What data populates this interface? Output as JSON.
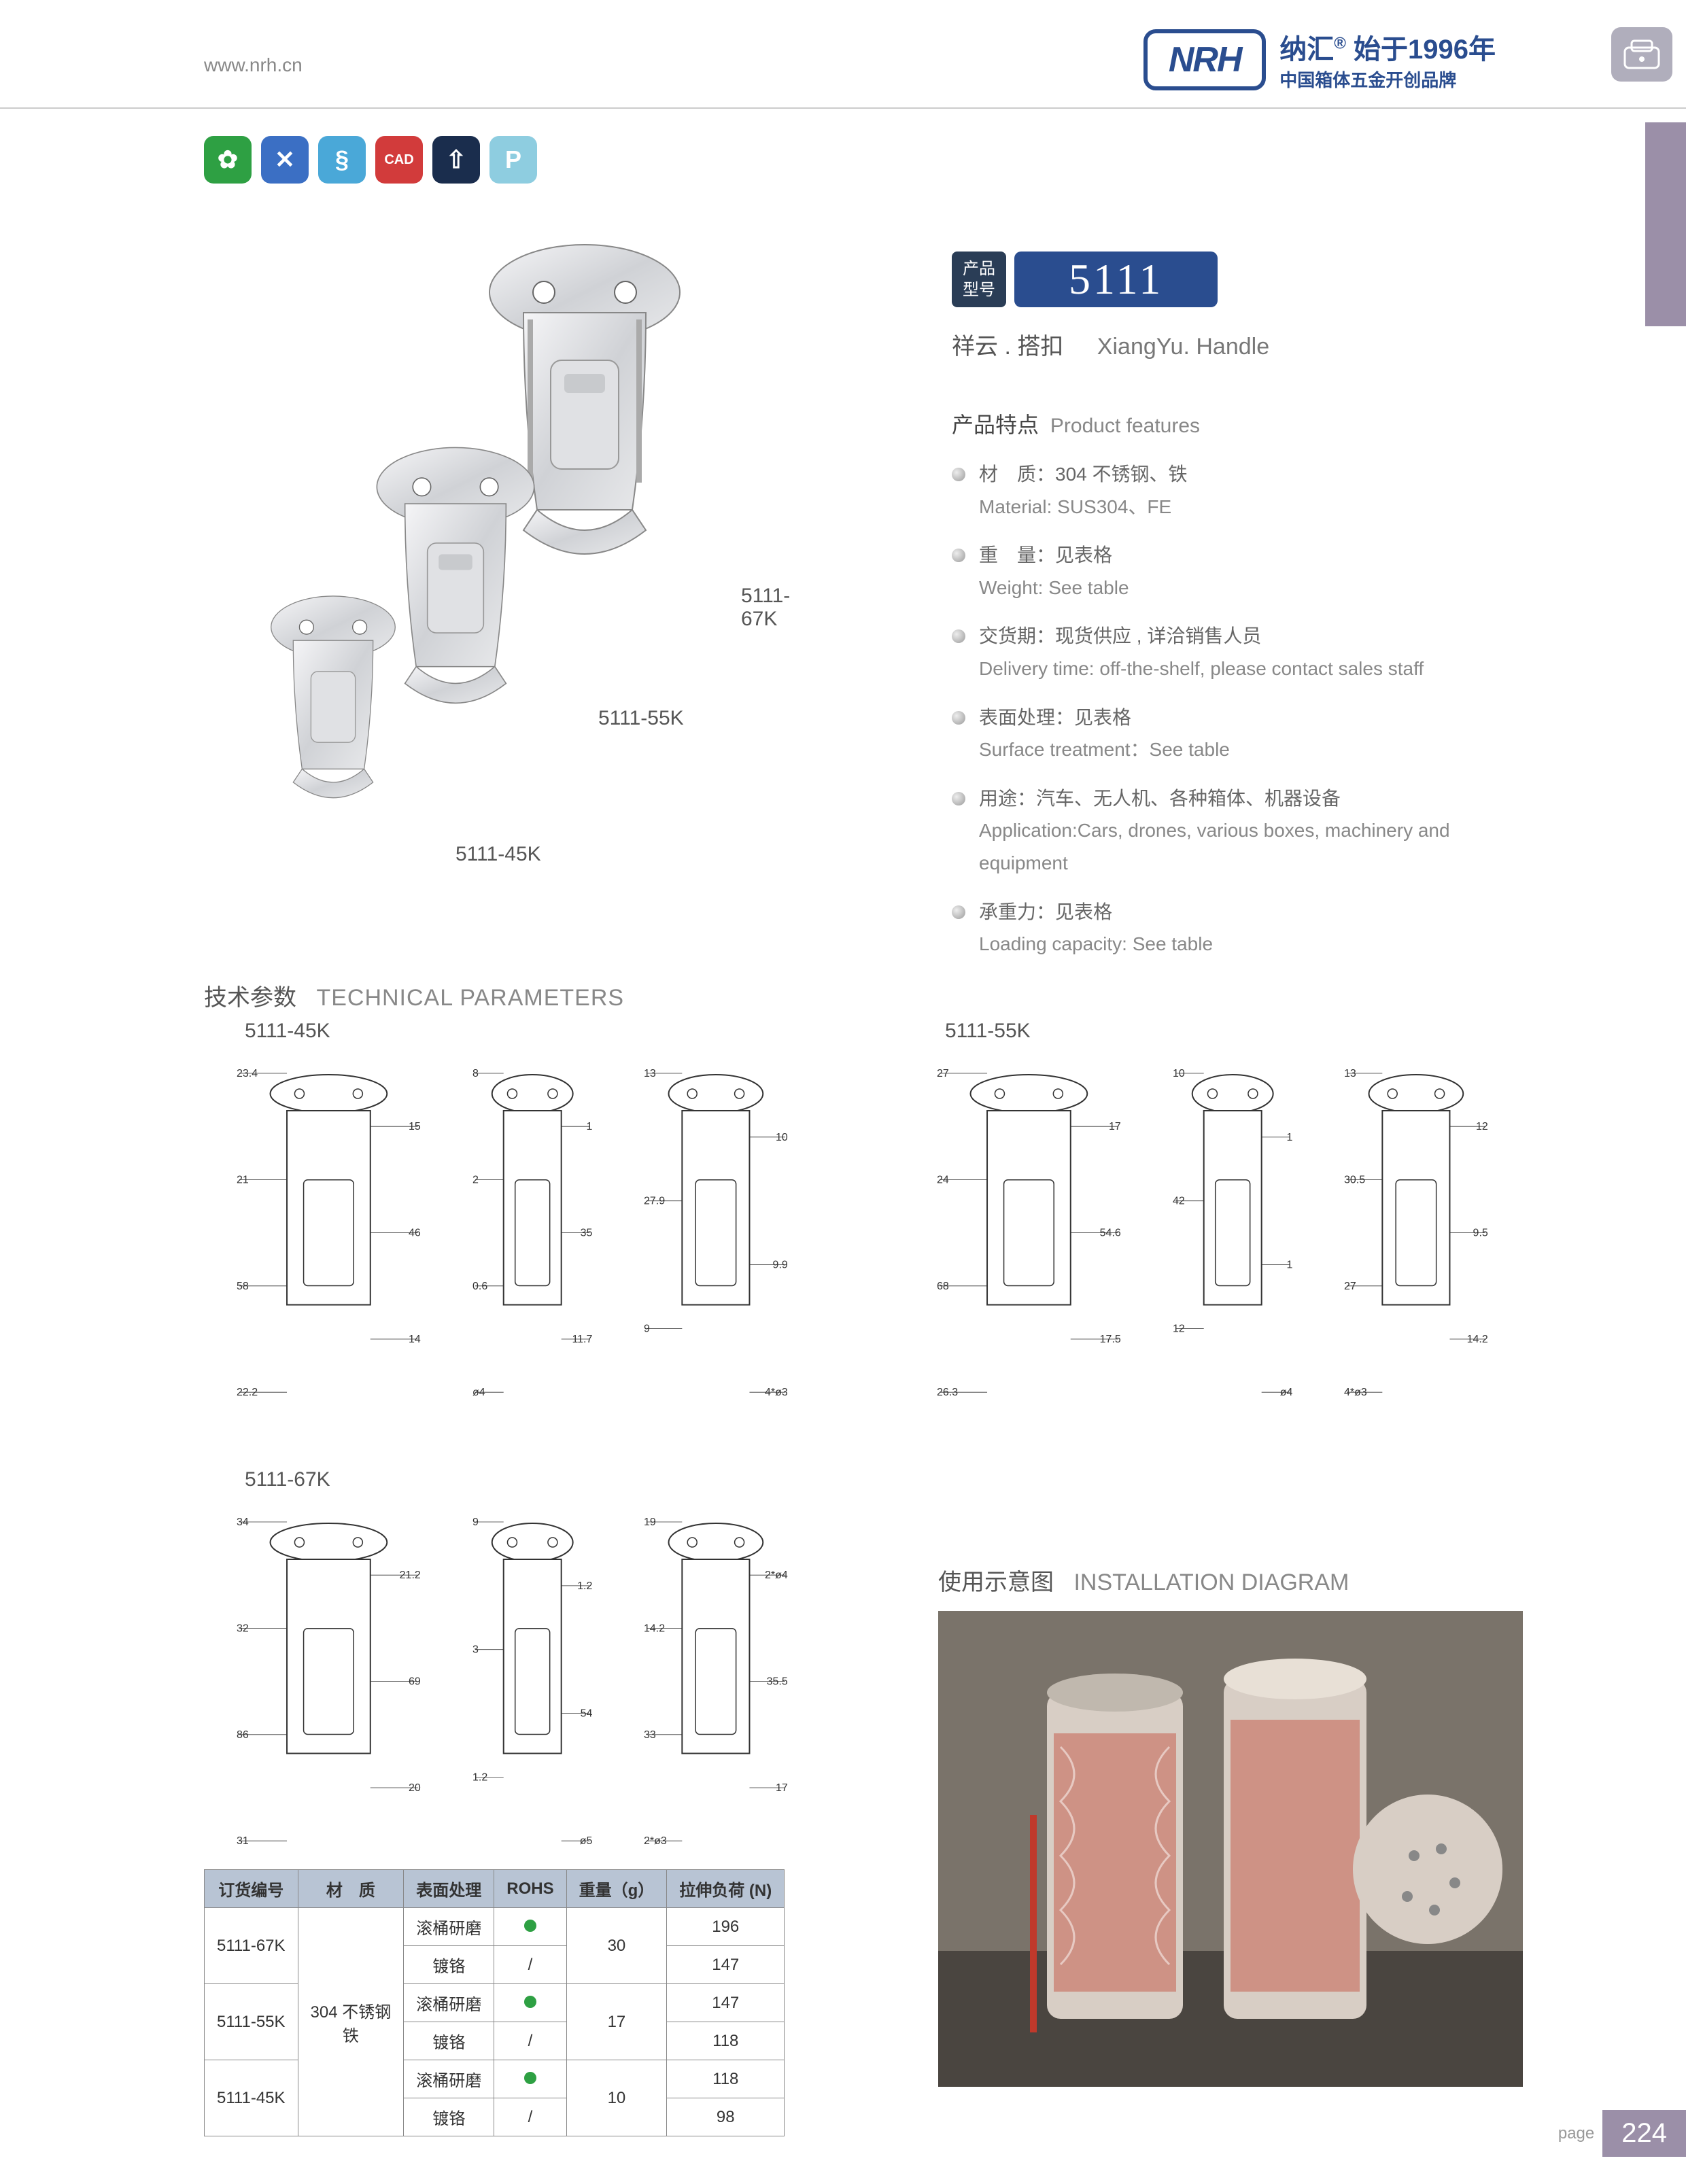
{
  "header": {
    "url": "www.nrh.cn",
    "logo_text": "NRH",
    "brand_cn": "纳汇",
    "brand_since": "始于1996年",
    "brand_sub": "中国箱体五金开创品牌"
  },
  "icon_row": [
    {
      "bg": "#2ea043",
      "glyph": "✿"
    },
    {
      "bg": "#3b6fc4",
      "glyph": "✕"
    },
    {
      "bg": "#4aa8d8",
      "glyph": "§"
    },
    {
      "bg": "#d23b3b",
      "glyph": "CAD"
    },
    {
      "bg": "#1a2d4d",
      "glyph": "⇧"
    },
    {
      "bg": "#8ecde0",
      "glyph": "P"
    }
  ],
  "product_labels": {
    "l1": "5111-67K",
    "l2": "5111-55K",
    "l3": "5111-45K"
  },
  "model": {
    "tag1": "产品",
    "tag2": "型号",
    "number": "5111",
    "sub_cn": "祥云 . 搭扣",
    "sub_en": "XiangYu. Handle"
  },
  "features_title": {
    "cn": "产品特点",
    "en": "Product features"
  },
  "features": [
    {
      "cn": "材　质：304 不锈钢、铁",
      "en": "Material: SUS304、FE"
    },
    {
      "cn": "重　量：见表格",
      "en": "Weight: See table"
    },
    {
      "cn": "交货期：现货供应 , 详洽销售人员",
      "en": "Delivery time: off-the-shelf, please contact sales staff"
    },
    {
      "cn": "表面处理：见表格",
      "en": "Surface treatment：See table"
    },
    {
      "cn": "用途：汽车、无人机、各种箱体、机器设备",
      "en": "Application:Cars, drones, various boxes, machinery and equipment"
    },
    {
      "cn": "承重力：见表格",
      "en": "Loading capacity: See table"
    }
  ],
  "tech_title": {
    "cn": "技术参数",
    "en": "TECHNICAL PARAMETERS"
  },
  "diagrams": {
    "d45k": {
      "label": "5111-45K",
      "dims_a": [
        "23.4",
        "15",
        "21",
        "46",
        "58",
        "14",
        "22.2"
      ],
      "dims_b": [
        "8",
        "1",
        "2",
        "35",
        "0.6",
        "11.7",
        "ø4"
      ],
      "dims_c": [
        "13",
        "10",
        "27.9",
        "9.9",
        "9",
        "4*ø3"
      ]
    },
    "d55k": {
      "label": "5111-55K",
      "dims_a": [
        "27",
        "17",
        "24",
        "54.6",
        "68",
        "17.5",
        "26.3"
      ],
      "dims_b": [
        "10",
        "1",
        "42",
        "1",
        "12",
        "ø4"
      ],
      "dims_c": [
        "13",
        "12",
        "30.5",
        "9.5",
        "27",
        "14.2",
        "4*ø3"
      ]
    },
    "d67k": {
      "label": "5111-67K",
      "dims_a": [
        "34",
        "21.2",
        "32",
        "69",
        "86",
        "20",
        "31"
      ],
      "dims_b": [
        "9",
        "1.2",
        "3",
        "54",
        "1.2",
        "ø5"
      ],
      "dims_c": [
        "19",
        "2*ø4",
        "14.2",
        "35.5",
        "33",
        "17",
        "2*ø3"
      ]
    }
  },
  "install_title": {
    "cn": "使用示意图",
    "en": "INSTALLATION DIAGRAM"
  },
  "table": {
    "headers": [
      "订货编号",
      "材　质",
      "表面处理",
      "ROHS",
      "重量（g）",
      "拉伸负荷 (N)"
    ],
    "material": "304 不锈钢\n铁",
    "rows": [
      {
        "code": "5111-67K",
        "finish": "滚桶研磨",
        "rohs": "dot",
        "weight": "30",
        "load": "196"
      },
      {
        "code": "",
        "finish": "镀铬",
        "rohs": "/",
        "weight": "",
        "load": "147"
      },
      {
        "code": "5111-55K",
        "finish": "滚桶研磨",
        "rohs": "dot",
        "weight": "17",
        "load": "147"
      },
      {
        "code": "",
        "finish": "镀铬",
        "rohs": "/",
        "weight": "",
        "load": "118"
      },
      {
        "code": "5111-45K",
        "finish": "滚桶研磨",
        "rohs": "dot",
        "weight": "10",
        "load": "118"
      },
      {
        "code": "",
        "finish": "镀铬",
        "rohs": "/",
        "weight": "",
        "load": "98"
      }
    ]
  },
  "page": {
    "label": "page",
    "number": "224"
  }
}
